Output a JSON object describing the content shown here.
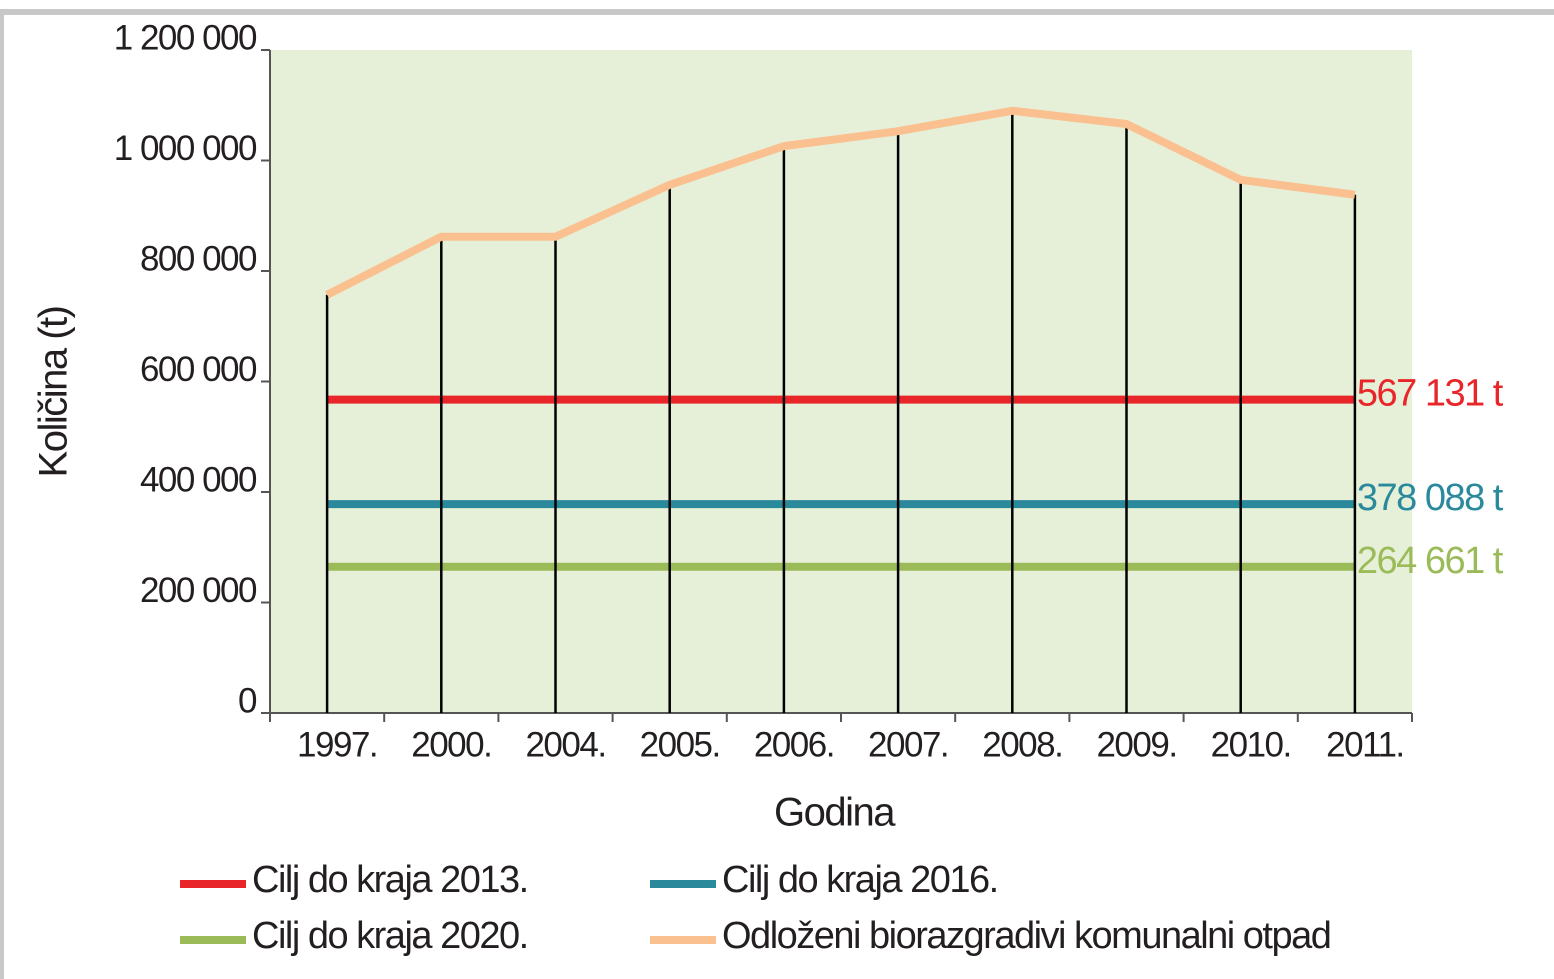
{
  "chart_data": {
    "type": "line",
    "y_label": "Količina (t)",
    "x_label": "Godina",
    "categories": [
      "1997.",
      "2000.",
      "2004.",
      "2005.",
      "2006.",
      "2007.",
      "2008.",
      "2009.",
      "2010.",
      "2011."
    ],
    "ylim": [
      0,
      1200000
    ],
    "yticks": [
      0,
      {
        "value": 200000,
        "label": "200 000"
      },
      {
        "value": 400000,
        "label": "400 000"
      },
      {
        "value": 600000,
        "label": "600 000"
      },
      {
        "value": 800000,
        "label": "800 000"
      },
      {
        "value": 1000000,
        "label": "1 000 000"
      },
      {
        "value": 1200000,
        "label": "1 200 000"
      }
    ],
    "series": [
      {
        "name": "Cilj do kraja 2013.",
        "color": "#e8262a",
        "label": "567 131 t",
        "values": [
          567131,
          567131,
          567131,
          567131,
          567131,
          567131,
          567131,
          567131,
          567131,
          567131
        ]
      },
      {
        "name": "Cilj do kraja 2016.",
        "color": "#2a8a9c",
        "label": "378 088 t",
        "values": [
          378088,
          378088,
          378088,
          378088,
          378088,
          378088,
          378088,
          378088,
          378088,
          378088
        ]
      },
      {
        "name": "Cilj do kraja 2020.",
        "color": "#9bbb59",
        "label": "264 661 t",
        "values": [
          264661,
          264661,
          264661,
          264661,
          264661,
          264661,
          264661,
          264661,
          264661,
          264661
        ]
      },
      {
        "name": "Odloženi biorazgradivi komunalni otpad",
        "color": "#fbc08f",
        "values": [
          757000,
          862000,
          862000,
          956000,
          1026000,
          1053000,
          1090000,
          1066000,
          965000,
          938000
        ]
      }
    ]
  }
}
